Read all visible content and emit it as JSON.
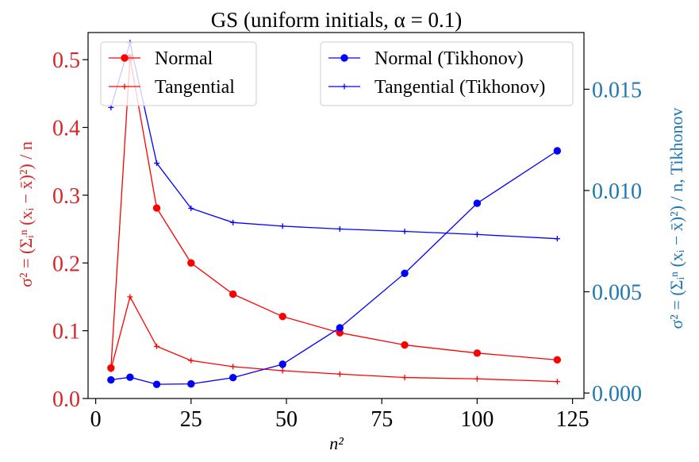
{
  "chart_data": {
    "type": "line",
    "title": "GS (uniform initials, α = 0.1)",
    "xlabel": "n²",
    "ylabel_left": "σ² = (Σᵢⁿ (xᵢ − x̄)²) / n",
    "ylabel_right": "σ² = (Σᵢⁿ (xᵢ − x̄)²) / n, Tikhonov",
    "xlim": [
      -2,
      128
    ],
    "ylim_left": [
      0.0,
      0.54
    ],
    "ylim_right": [
      -0.00027,
      0.0178
    ],
    "xticks": [
      "0",
      "25",
      "50",
      "75",
      "100",
      "125"
    ],
    "yticks_left": [
      "0.0",
      "0.1",
      "0.2",
      "0.3",
      "0.4",
      "0.5"
    ],
    "yticks_right": [
      "0.000",
      "0.005",
      "0.010",
      "0.015"
    ],
    "x": [
      4,
      9,
      16,
      25,
      36,
      49,
      64,
      81,
      100,
      121
    ],
    "series": [
      {
        "name": "Normal",
        "axis": "left",
        "color": "#ff0000",
        "marker": "circle",
        "values": [
          0.045,
          0.503,
          0.281,
          0.2,
          0.154,
          0.121,
          0.097,
          0.079,
          0.067,
          0.057
        ]
      },
      {
        "name": "Tangential",
        "axis": "left",
        "color": "#ff0000",
        "marker": "plus",
        "values": [
          0.043,
          0.15,
          0.077,
          0.056,
          0.047,
          0.041,
          0.036,
          0.031,
          0.029,
          0.025
        ]
      },
      {
        "name": "Normal (Tikhonov)",
        "axis": "right",
        "color": "#0000ff",
        "marker": "circle",
        "values": [
          0.00065,
          0.00078,
          0.00043,
          0.00045,
          0.00076,
          0.00142,
          0.00322,
          0.00591,
          0.00937,
          0.01196
        ]
      },
      {
        "name": "Tangential (Tikhonov)",
        "axis": "right",
        "color": "#0000ff",
        "marker": "plus",
        "values": [
          0.0141,
          0.0173,
          0.01135,
          0.00912,
          0.00842,
          0.00824,
          0.0081,
          0.00798,
          0.00783,
          0.00762
        ]
      }
    ],
    "left_axis_color": "#d62728",
    "right_axis_color": "#1f77b4",
    "legend_left": [
      "Normal",
      "Tangential"
    ],
    "legend_right": [
      "Normal (Tikhonov)",
      "Tangential (Tikhonov)"
    ],
    "legend_left_position": "upper-left",
    "legend_right_position": "upper-right",
    "grid": false
  }
}
